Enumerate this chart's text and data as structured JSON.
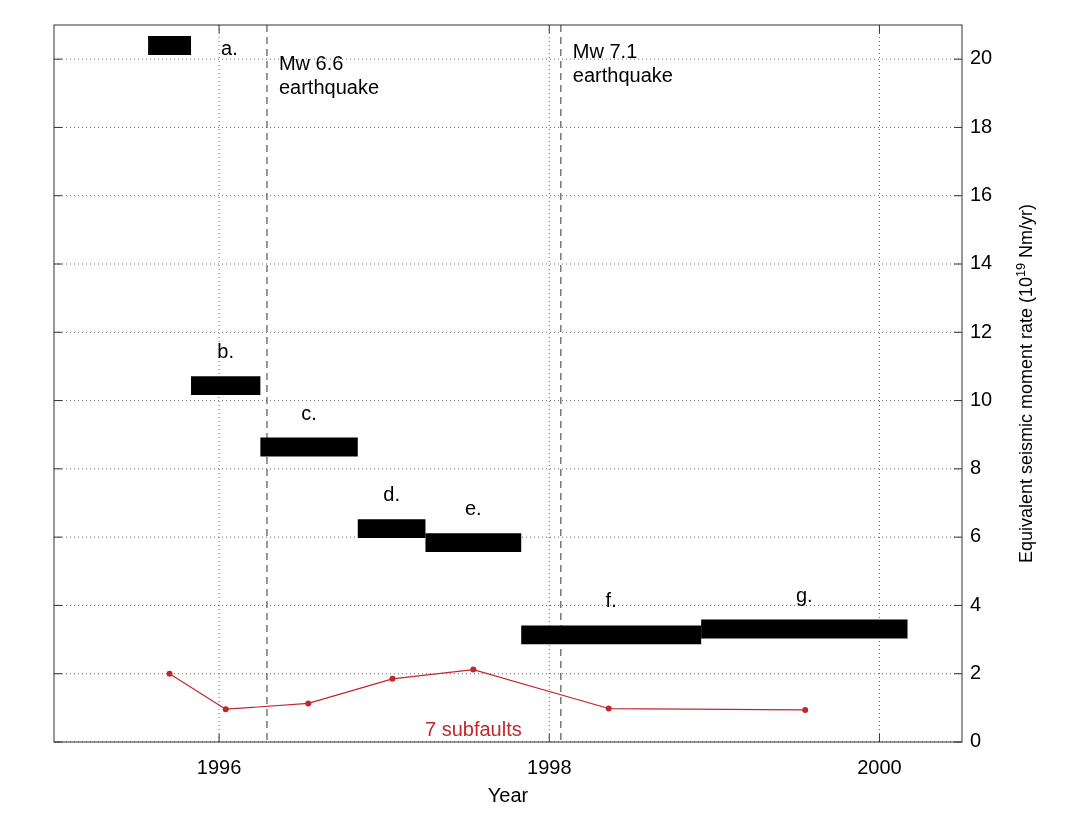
{
  "chart_data": {
    "type": "line",
    "xlabel": "Year",
    "ylabel": "Equivalent seismic moment rate (10$^{19}$ Nm/yr)",
    "xlim": [
      1995,
      2000.5
    ],
    "xticks": [
      1996,
      1998,
      2000
    ],
    "ylim": [
      0,
      21
    ],
    "yticks": [
      0,
      2,
      4,
      6,
      8,
      10,
      12,
      14,
      16,
      18,
      20
    ],
    "grid": true,
    "series": [
      {
        "name": "a.",
        "color": "#000000",
        "x": [
          1995.57,
          1995.83
        ],
        "values": [
          20.4,
          20.4
        ]
      },
      {
        "name": "b.",
        "color": "#000000",
        "x": [
          1995.83,
          1996.25
        ],
        "values": [
          10.44,
          10.44
        ]
      },
      {
        "name": "c.",
        "color": "#000000",
        "x": [
          1996.25,
          1996.84
        ],
        "values": [
          8.64,
          8.64
        ]
      },
      {
        "name": "d.",
        "color": "#000000",
        "x": [
          1996.84,
          1997.25
        ],
        "values": [
          6.25,
          6.25
        ]
      },
      {
        "name": "e.",
        "color": "#000000",
        "x": [
          1997.25,
          1997.83
        ],
        "values": [
          5.84,
          5.84
        ]
      },
      {
        "name": "f.",
        "color": "#000000",
        "x": [
          1997.83,
          1998.92
        ],
        "values": [
          3.14,
          3.14
        ]
      },
      {
        "name": "g.",
        "color": "#000000",
        "x": [
          1998.92,
          2000.17
        ],
        "values": [
          3.31,
          3.31
        ]
      },
      {
        "name": "7 subfaults",
        "color": "#c0282d",
        "marker": "circle",
        "x": [
          1995.7,
          1996.04,
          1996.54,
          1997.05,
          1997.54,
          1998.36,
          1999.55
        ],
        "values": [
          2.0,
          0.96,
          1.13,
          1.85,
          2.12,
          0.98,
          0.94
        ]
      }
    ],
    "ref_lines": [
      {
        "axis": "x",
        "value": 1996.29,
        "label": "Mw 6.6\nearthquake",
        "color": "#555555",
        "line_style": "dashed"
      },
      {
        "axis": "x",
        "value": 1998.07,
        "label": "Mw 7.1\nearthquake",
        "color": "#555555",
        "line_style": "dashed"
      }
    ]
  }
}
